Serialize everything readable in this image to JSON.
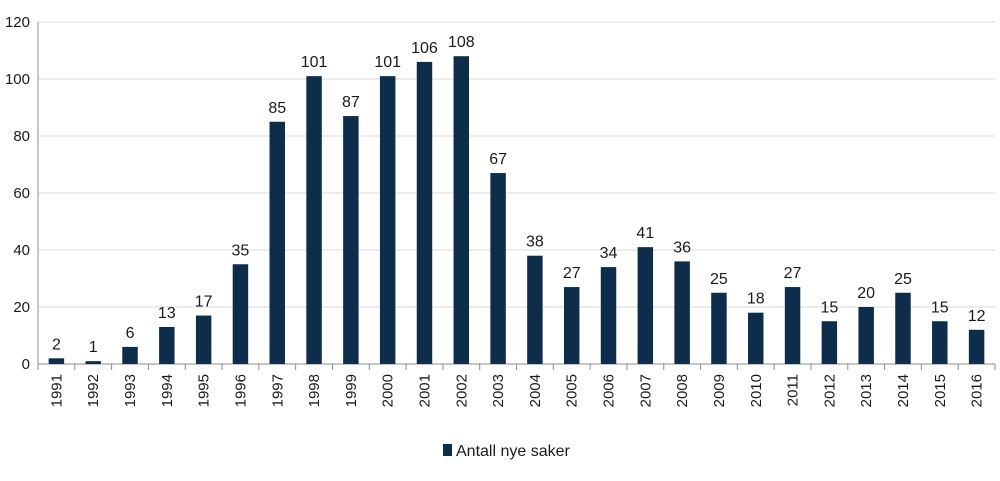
{
  "chart_data": {
    "type": "bar",
    "categories": [
      "1991",
      "1992",
      "1993",
      "1994",
      "1995",
      "1996",
      "1997",
      "1998",
      "1999",
      "2000",
      "2001",
      "2002",
      "2003",
      "2004",
      "2005",
      "2006",
      "2007",
      "2008",
      "2009",
      "2010",
      "2011",
      "2012",
      "2013",
      "2014",
      "2015",
      "2016"
    ],
    "series": [
      {
        "name": "Antall nye saker",
        "values": [
          2,
          1,
          6,
          13,
          17,
          35,
          85,
          101,
          87,
          101,
          106,
          108,
          67,
          38,
          27,
          34,
          41,
          36,
          25,
          18,
          27,
          15,
          20,
          25,
          15,
          12
        ],
        "color": "#0d2d4b"
      }
    ],
    "ylim": [
      0,
      120
    ],
    "yticks": [
      0,
      20,
      40,
      60,
      80,
      100,
      120
    ],
    "grid": true,
    "grid_color": "#d9d9d9",
    "legend_position": "bottom-center",
    "data_labels": true,
    "xtick_rotation": "vertical"
  }
}
